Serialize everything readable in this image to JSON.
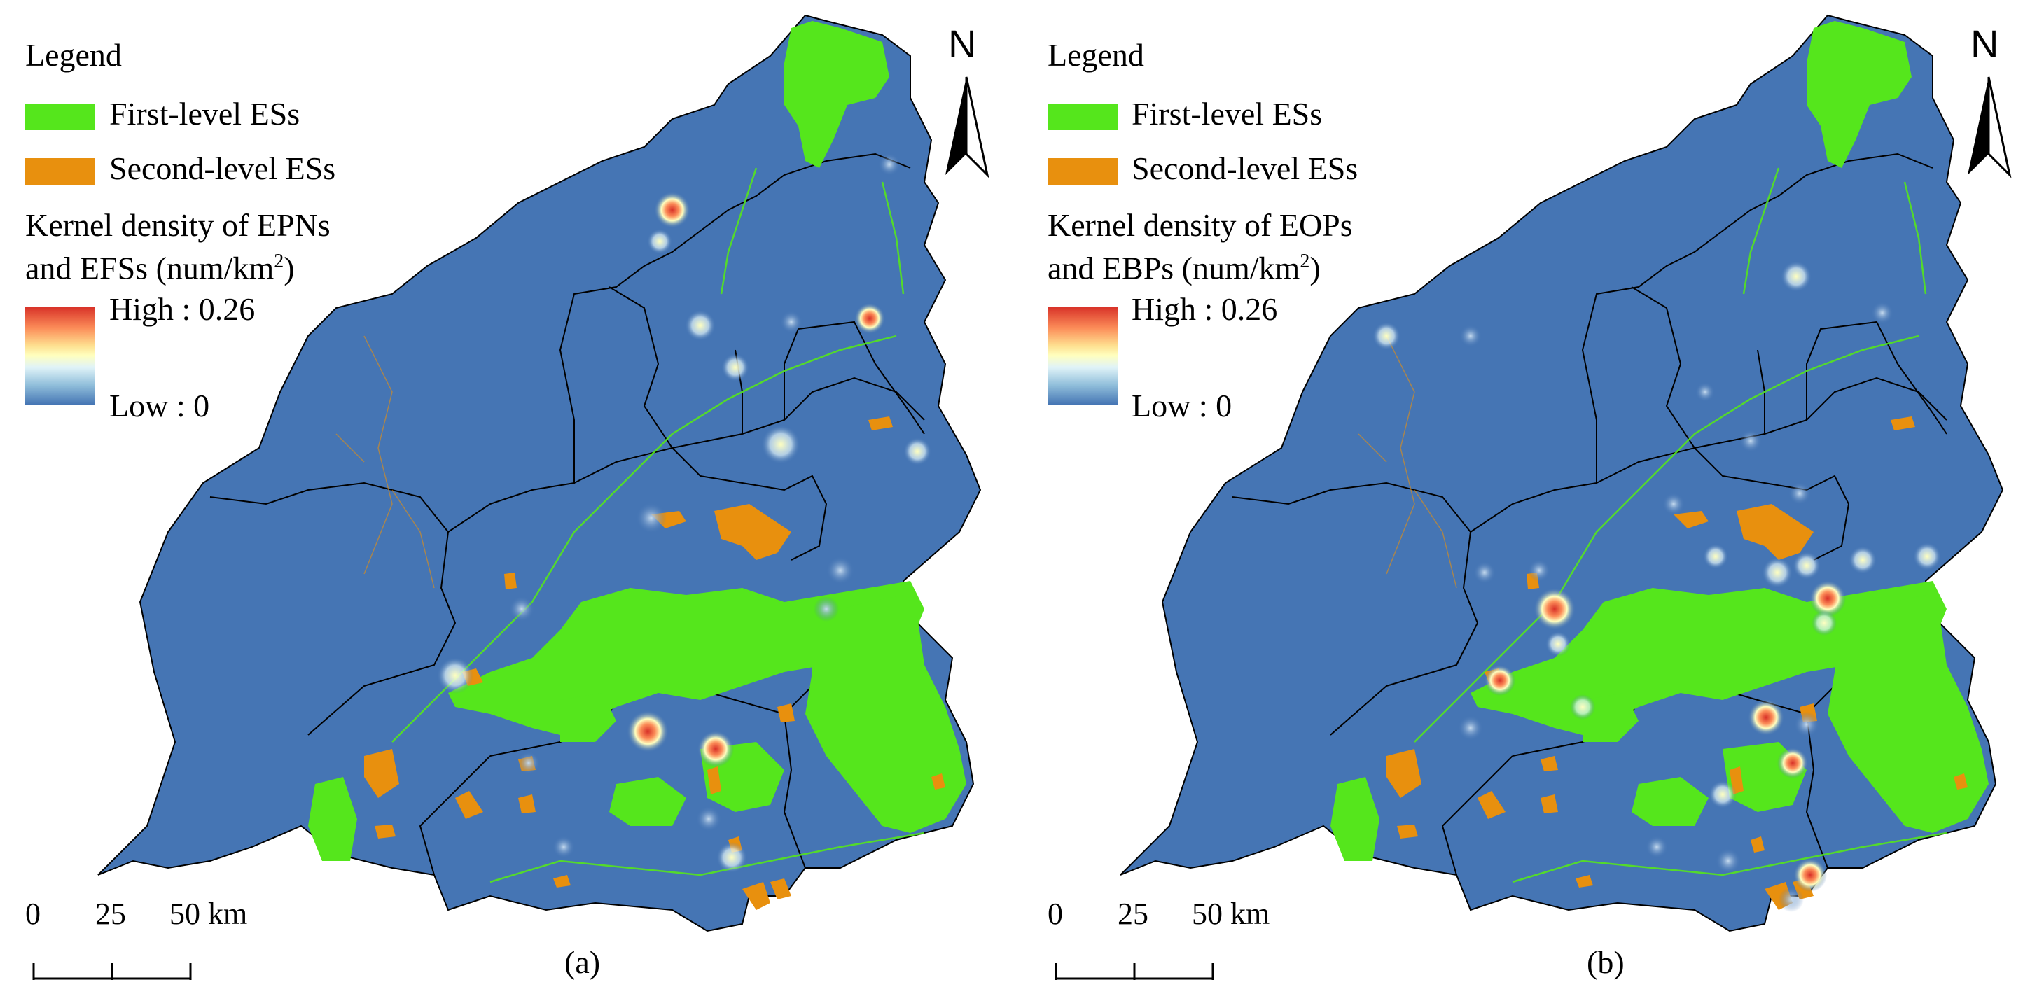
{
  "panels": [
    {
      "caption": "(a)",
      "legend_title": "Legend",
      "legend_items": [
        {
          "label": "First-level ESs",
          "color": "#55e61c"
        },
        {
          "label": "Second-level ESs",
          "color": "#e8900e"
        }
      ],
      "kd_title_line1": "Kernel density of EPNs",
      "kd_title_line2": "and EFSs (num/km",
      "kd_title_sup": "2",
      "kd_title_end": ")",
      "kd_high": "High : 0.26",
      "kd_low": "Low : 0",
      "north": "N",
      "scale": {
        "t0": "0",
        "t1": "25",
        "t2": "50 km"
      }
    },
    {
      "caption": "(b)",
      "legend_title": "Legend",
      "legend_items": [
        {
          "label": "First-level ESs",
          "color": "#55e61c"
        },
        {
          "label": "Second-level ESs",
          "color": "#e8900e"
        }
      ],
      "kd_title_line1": "Kernel density of EOPs",
      "kd_title_line2": "and EBPs (num/km",
      "kd_title_sup": "2",
      "kd_title_end": ")",
      "kd_high": "High : 0.26",
      "kd_low": "Low : 0",
      "north": "N",
      "scale": {
        "t0": "0",
        "t1": "25",
        "t2": "50 km"
      }
    }
  ],
  "colors": {
    "background_density": "#4575b4",
    "first_level": "#55e61c",
    "second_level": "#e8900e",
    "boundary": "#000000",
    "high": "#d73027",
    "low": "#4575b4"
  },
  "ramp_colors": [
    "#d73027",
    "#fc8d59",
    "#fee090",
    "#ffffbf",
    "#e0f3f8",
    "#91bfdb",
    "#4575b4"
  ]
}
